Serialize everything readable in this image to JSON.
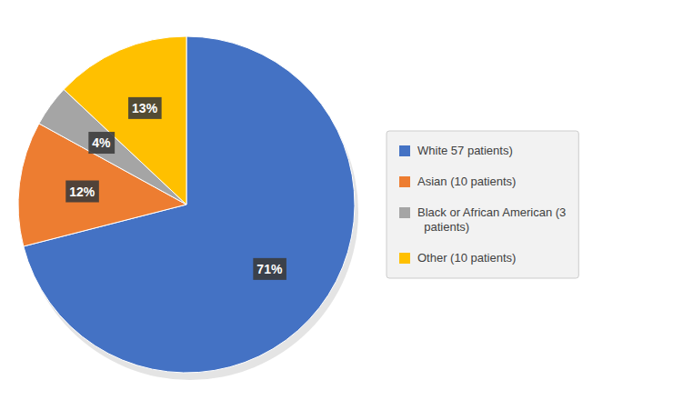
{
  "chart_data": {
    "type": "pie",
    "categories": [
      "White 57 patients)",
      "Asian (10 patients)",
      "Black or African American (3\n  patients)",
      "Other (10 patients)"
    ],
    "values": [
      71,
      12,
      4,
      13
    ],
    "value_labels": [
      "71%",
      "12%",
      "4%",
      "13%"
    ],
    "colors": [
      "#4472C4",
      "#ED7D31",
      "#A5A5A5",
      "#FFC000"
    ],
    "data_labels": true,
    "legend": "right"
  }
}
